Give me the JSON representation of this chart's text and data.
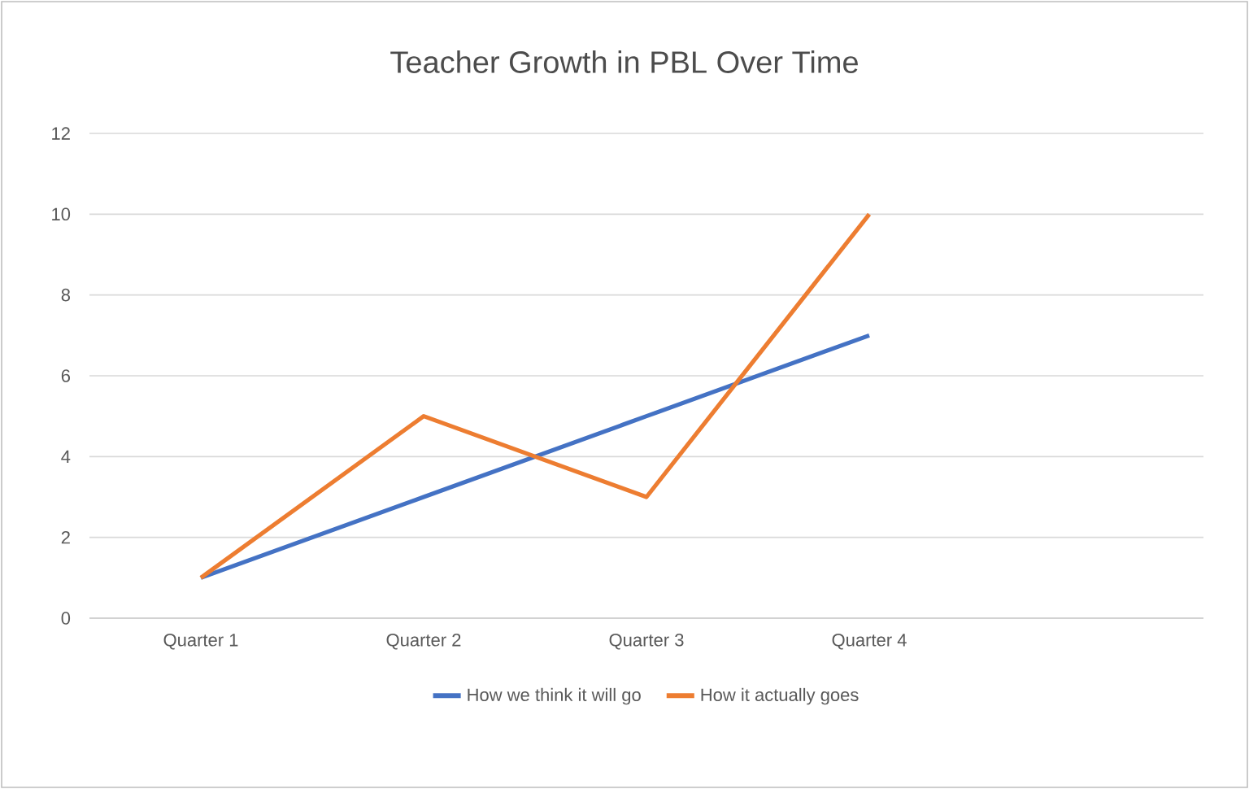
{
  "chart_data": {
    "type": "line",
    "title": "Teacher Growth in PBL Over Time",
    "categories": [
      "Quarter 1",
      "Quarter 2",
      "Quarter 3",
      "Quarter 4",
      null
    ],
    "series": [
      {
        "name": "How we think it will go",
        "color": "#4472c4",
        "values": [
          1,
          3,
          5,
          7,
          null
        ]
      },
      {
        "name": "How it actually goes",
        "color": "#ed7d31",
        "values": [
          1,
          5,
          3,
          10,
          null
        ]
      }
    ],
    "ylim": [
      0,
      12
    ],
    "yticks": [
      0,
      2,
      4,
      6,
      8,
      10,
      12
    ],
    "grid": "y",
    "legend": "bottom",
    "marker": "none",
    "line_style": "solid"
  }
}
